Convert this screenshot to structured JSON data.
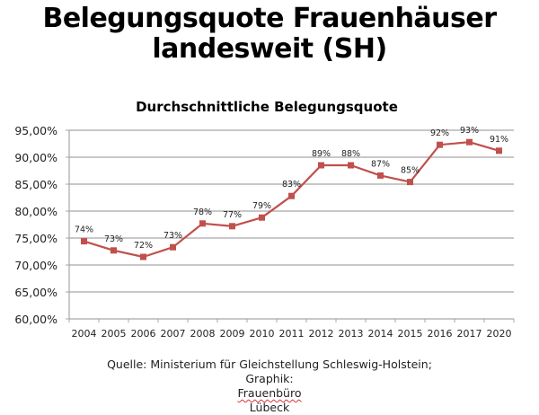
{
  "header": {
    "title_line1": "Belegungsquote Frauenhäuser",
    "title_line2": "landesweit (SH)"
  },
  "chart_data": {
    "type": "line",
    "title": "Durchschnittliche Belegungsquote",
    "xlabel": "",
    "ylabel": "",
    "categories": [
      "2004",
      "2005",
      "2006",
      "2007",
      "2008",
      "2009",
      "2010",
      "2011",
      "2012",
      "2013",
      "2014",
      "2015",
      "2016",
      "2017",
      "2020"
    ],
    "series": [
      {
        "name": "Belegungsquote",
        "color": "#c0504d",
        "marker": "square",
        "values": [
          74.4,
          72.7,
          71.5,
          73.3,
          77.7,
          77.2,
          78.8,
          82.8,
          88.5,
          88.5,
          86.6,
          85.4,
          92.3,
          92.8,
          91.2
        ],
        "data_labels": [
          "74%",
          "73%",
          "72%",
          "73%",
          "78%",
          "77%",
          "79%",
          "83%",
          "89%",
          "88%",
          "87%",
          "85%",
          "92%",
          "93%",
          "91%"
        ]
      }
    ],
    "ylim": [
      60,
      95
    ],
    "yticks": [
      60,
      65,
      70,
      75,
      80,
      85,
      90,
      95
    ],
    "ytick_labels": [
      "60,00%",
      "65,00%",
      "70,00%",
      "75,00%",
      "80,00%",
      "85,00%",
      "90,00%",
      "95,00%"
    ],
    "grid": true,
    "legend": "none"
  },
  "source": {
    "line1": "Quelle: Ministerium für Gleichstellung Schleswig-Holstein;",
    "line2_prefix": "Graphik: ",
    "line2_org": "Frauenbüro",
    "line2_suffix": " Lübeck"
  }
}
